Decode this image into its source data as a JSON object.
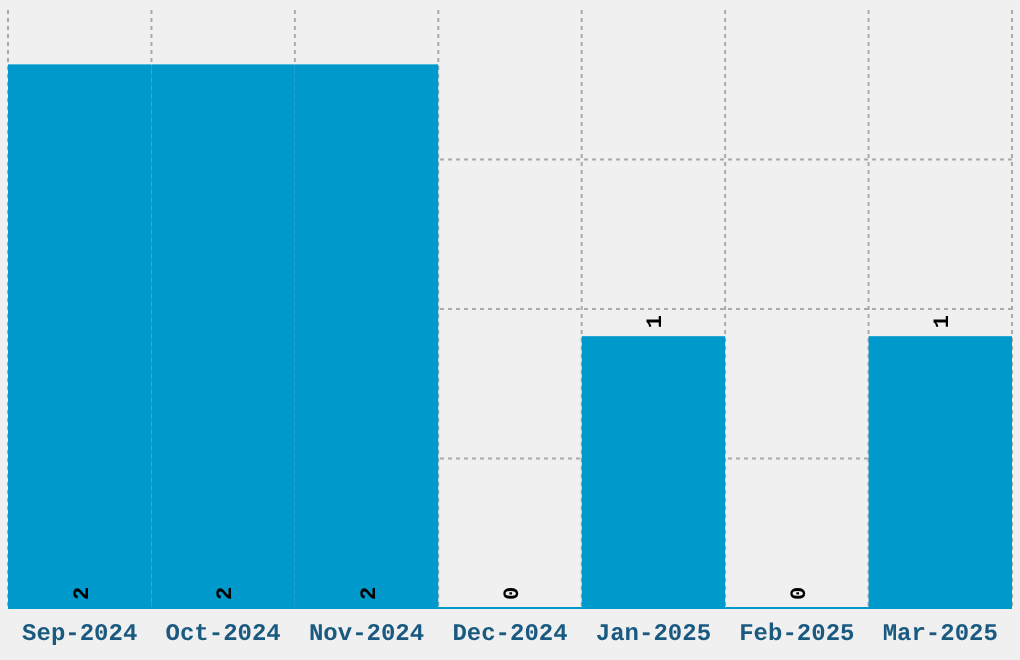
{
  "chart_data": {
    "type": "bar",
    "categories": [
      "Sep-2024",
      "Oct-2024",
      "Nov-2024",
      "Dec-2024",
      "Jan-2025",
      "Feb-2025",
      "Mar-2025"
    ],
    "values": [
      2,
      2,
      2,
      0,
      1,
      0,
      1
    ],
    "color": "#0099cc",
    "data_labels": true,
    "ylim": [
      0,
      2.2
    ],
    "yticks": [
      {
        "value": 0.55,
        "label": null
      },
      {
        "value": 1.1,
        "label": null
      },
      {
        "value": 1.65,
        "label": null
      }
    ],
    "grid": true,
    "tick_labels": "x"
  }
}
